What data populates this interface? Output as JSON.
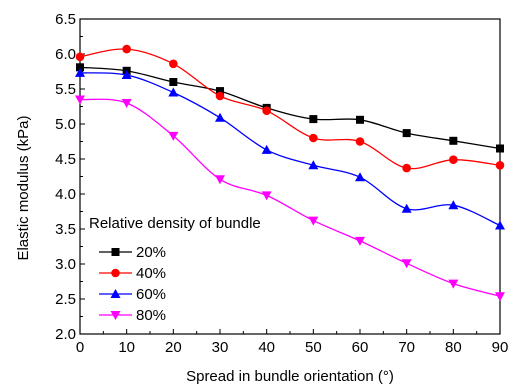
{
  "chart_data": {
    "type": "line",
    "xlabel": "Spread in bundle orientation (°)",
    "ylabel": "Elastic modulus (kPa)",
    "xlim": [
      0,
      90
    ],
    "ylim": [
      2.0,
      6.5
    ],
    "x_ticks": [
      0,
      10,
      20,
      30,
      40,
      50,
      60,
      70,
      80,
      90
    ],
    "y_ticks": [
      2.0,
      2.5,
      3.0,
      3.5,
      4.0,
      4.5,
      5.0,
      5.5,
      6.0,
      6.5
    ],
    "x_tick_labels": [
      "0",
      "10",
      "20",
      "30",
      "40",
      "50",
      "60",
      "70",
      "80",
      "90"
    ],
    "y_tick_labels": [
      "2.0",
      "2.5",
      "3.0",
      "3.5",
      "4.0",
      "4.5",
      "5.0",
      "5.5",
      "6.0",
      "6.5"
    ],
    "grid": false,
    "legend": {
      "title": "Relative density of bundle",
      "placement": "lower-left"
    },
    "x": [
      0,
      10,
      20,
      30,
      40,
      50,
      60,
      70,
      80,
      90
    ],
    "series": [
      {
        "name": "20%",
        "color": "#000000",
        "marker": "square",
        "values": [
          5.81,
          5.76,
          5.6,
          5.47,
          5.23,
          5.07,
          5.06,
          4.87,
          4.76,
          4.65
        ]
      },
      {
        "name": "40%",
        "color": "#ff0000",
        "marker": "circle",
        "values": [
          5.96,
          6.07,
          5.86,
          5.4,
          5.19,
          4.8,
          4.75,
          4.37,
          4.49,
          4.41
        ]
      },
      {
        "name": "60%",
        "color": "#0000ff",
        "marker": "triangle-up",
        "values": [
          5.73,
          5.7,
          5.45,
          5.09,
          4.63,
          4.41,
          4.24,
          3.79,
          3.84,
          3.55
        ]
      },
      {
        "name": "80%",
        "color": "#ff00ff",
        "marker": "triangle-down",
        "values": [
          5.35,
          5.3,
          4.83,
          4.21,
          3.98,
          3.62,
          3.33,
          3.01,
          2.72,
          2.54
        ]
      }
    ]
  }
}
